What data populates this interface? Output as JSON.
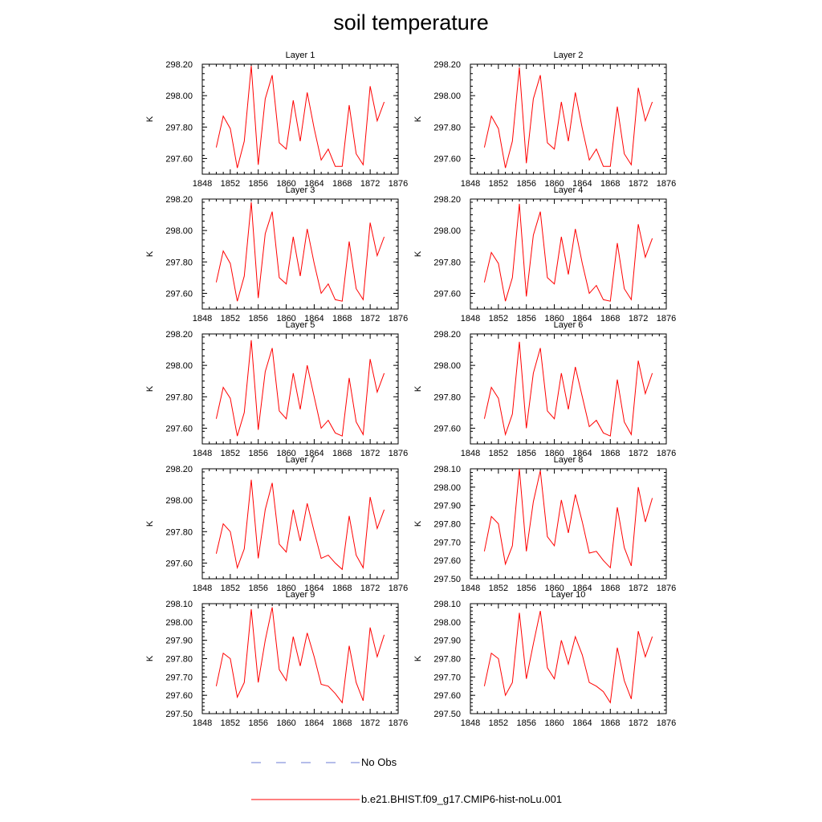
{
  "title": "soil temperature",
  "colors": {
    "model": "#ff0000",
    "obs": "#6b7bd6",
    "axis": "#000000"
  },
  "legend": {
    "obs_label": "No Obs",
    "model_label": "b.e21.BHIST.f09_g17.CMIP6-hist-noLu.001"
  },
  "chart_data": [
    {
      "type": "line",
      "title": "Layer 1",
      "ylabel": "K",
      "xlim": [
        1848,
        1876
      ],
      "ylim": [
        297.5,
        298.2
      ],
      "xticks": [
        "1848",
        "1852",
        "1856",
        "1860",
        "1864",
        "1868",
        "1872",
        "1876"
      ],
      "yticks": [
        "297.60",
        "297.80",
        "298.00",
        "298.20"
      ],
      "x": [
        1850,
        1851,
        1852,
        1853,
        1854,
        1855,
        1856,
        1857,
        1858,
        1859,
        1860,
        1861,
        1862,
        1863,
        1864,
        1865,
        1866,
        1867,
        1868,
        1869,
        1870,
        1871,
        1872,
        1873,
        1874
      ],
      "series": [
        {
          "name": "b.e21.BHIST.f09_g17.CMIP6-hist-noLu.001",
          "values": [
            297.67,
            297.87,
            297.79,
            297.54,
            297.71,
            298.19,
            297.56,
            297.98,
            298.13,
            297.7,
            297.66,
            297.97,
            297.71,
            298.02,
            297.79,
            297.59,
            297.66,
            297.55,
            297.55,
            297.94,
            297.63,
            297.56,
            298.06,
            297.84,
            297.96
          ]
        }
      ]
    },
    {
      "type": "line",
      "title": "Layer 2",
      "ylabel": "K",
      "xlim": [
        1848,
        1876
      ],
      "ylim": [
        297.5,
        298.2
      ],
      "xticks": [
        "1848",
        "1852",
        "1856",
        "1860",
        "1864",
        "1868",
        "1872",
        "1876"
      ],
      "yticks": [
        "297.60",
        "297.80",
        "298.00",
        "298.20"
      ],
      "x": [
        1850,
        1851,
        1852,
        1853,
        1854,
        1855,
        1856,
        1857,
        1858,
        1859,
        1860,
        1861,
        1862,
        1863,
        1864,
        1865,
        1866,
        1867,
        1868,
        1869,
        1870,
        1871,
        1872,
        1873,
        1874
      ],
      "series": [
        {
          "name": "b.e21.BHIST.f09_g17.CMIP6-hist-noLu.001",
          "values": [
            297.67,
            297.87,
            297.79,
            297.54,
            297.71,
            298.18,
            297.57,
            297.98,
            298.13,
            297.7,
            297.66,
            297.96,
            297.71,
            298.02,
            297.79,
            297.59,
            297.66,
            297.55,
            297.55,
            297.93,
            297.63,
            297.56,
            298.05,
            297.84,
            297.96
          ]
        }
      ]
    },
    {
      "type": "line",
      "title": "Layer 3",
      "ylabel": "K",
      "xlim": [
        1848,
        1876
      ],
      "ylim": [
        297.5,
        298.2
      ],
      "xticks": [
        "1848",
        "1852",
        "1856",
        "1860",
        "1864",
        "1868",
        "1872",
        "1876"
      ],
      "yticks": [
        "297.60",
        "297.80",
        "298.00",
        "298.20"
      ],
      "x": [
        1850,
        1851,
        1852,
        1853,
        1854,
        1855,
        1856,
        1857,
        1858,
        1859,
        1860,
        1861,
        1862,
        1863,
        1864,
        1865,
        1866,
        1867,
        1868,
        1869,
        1870,
        1871,
        1872,
        1873,
        1874
      ],
      "series": [
        {
          "name": "b.e21.BHIST.f09_g17.CMIP6-hist-noLu.001",
          "values": [
            297.67,
            297.87,
            297.79,
            297.55,
            297.71,
            298.18,
            297.57,
            297.98,
            298.12,
            297.7,
            297.66,
            297.96,
            297.71,
            298.01,
            297.79,
            297.6,
            297.66,
            297.56,
            297.55,
            297.93,
            297.63,
            297.56,
            298.05,
            297.84,
            297.96
          ]
        }
      ]
    },
    {
      "type": "line",
      "title": "Layer 4",
      "ylabel": "K",
      "xlim": [
        1848,
        1876
      ],
      "ylim": [
        297.5,
        298.2
      ],
      "xticks": [
        "1848",
        "1852",
        "1856",
        "1860",
        "1864",
        "1868",
        "1872",
        "1876"
      ],
      "yticks": [
        "297.60",
        "297.80",
        "298.00",
        "298.20"
      ],
      "x": [
        1850,
        1851,
        1852,
        1853,
        1854,
        1855,
        1856,
        1857,
        1858,
        1859,
        1860,
        1861,
        1862,
        1863,
        1864,
        1865,
        1866,
        1867,
        1868,
        1869,
        1870,
        1871,
        1872,
        1873,
        1874
      ],
      "series": [
        {
          "name": "b.e21.BHIST.f09_g17.CMIP6-hist-noLu.001",
          "values": [
            297.67,
            297.86,
            297.79,
            297.55,
            297.7,
            298.17,
            297.58,
            297.97,
            298.12,
            297.7,
            297.66,
            297.96,
            297.72,
            298.01,
            297.79,
            297.6,
            297.65,
            297.56,
            297.55,
            297.92,
            297.63,
            297.56,
            298.04,
            297.83,
            297.95
          ]
        }
      ]
    },
    {
      "type": "line",
      "title": "Layer 5",
      "ylabel": "K",
      "xlim": [
        1848,
        1876
      ],
      "ylim": [
        297.5,
        298.2
      ],
      "xticks": [
        "1848",
        "1852",
        "1856",
        "1860",
        "1864",
        "1868",
        "1872",
        "1876"
      ],
      "yticks": [
        "297.60",
        "297.80",
        "298.00",
        "298.20"
      ],
      "x": [
        1850,
        1851,
        1852,
        1853,
        1854,
        1855,
        1856,
        1857,
        1858,
        1859,
        1860,
        1861,
        1862,
        1863,
        1864,
        1865,
        1866,
        1867,
        1868,
        1869,
        1870,
        1871,
        1872,
        1873,
        1874
      ],
      "series": [
        {
          "name": "b.e21.BHIST.f09_g17.CMIP6-hist-noLu.001",
          "values": [
            297.66,
            297.86,
            297.79,
            297.55,
            297.7,
            298.16,
            297.59,
            297.96,
            298.11,
            297.71,
            297.66,
            297.95,
            297.72,
            298.0,
            297.8,
            297.6,
            297.65,
            297.57,
            297.55,
            297.92,
            297.64,
            297.56,
            298.04,
            297.83,
            297.95
          ]
        }
      ]
    },
    {
      "type": "line",
      "title": "Layer 6",
      "ylabel": "K",
      "xlim": [
        1848,
        1876
      ],
      "ylim": [
        297.5,
        298.2
      ],
      "xticks": [
        "1848",
        "1852",
        "1856",
        "1860",
        "1864",
        "1868",
        "1872",
        "1876"
      ],
      "yticks": [
        "297.60",
        "297.80",
        "298.00",
        "298.20"
      ],
      "x": [
        1850,
        1851,
        1852,
        1853,
        1854,
        1855,
        1856,
        1857,
        1858,
        1859,
        1860,
        1861,
        1862,
        1863,
        1864,
        1865,
        1866,
        1867,
        1868,
        1869,
        1870,
        1871,
        1872,
        1873,
        1874
      ],
      "series": [
        {
          "name": "b.e21.BHIST.f09_g17.CMIP6-hist-noLu.001",
          "values": [
            297.66,
            297.86,
            297.79,
            297.56,
            297.69,
            298.15,
            297.6,
            297.95,
            298.11,
            297.71,
            297.66,
            297.95,
            297.72,
            297.99,
            297.8,
            297.61,
            297.65,
            297.57,
            297.55,
            297.91,
            297.64,
            297.56,
            298.03,
            297.82,
            297.95
          ]
        }
      ]
    },
    {
      "type": "line",
      "title": "Layer 7",
      "ylabel": "K",
      "xlim": [
        1848,
        1876
      ],
      "ylim": [
        297.5,
        298.2
      ],
      "xticks": [
        "1848",
        "1852",
        "1856",
        "1860",
        "1864",
        "1868",
        "1872",
        "1876"
      ],
      "yticks": [
        "297.60",
        "297.80",
        "298.00",
        "298.20"
      ],
      "x": [
        1850,
        1851,
        1852,
        1853,
        1854,
        1855,
        1856,
        1857,
        1858,
        1859,
        1860,
        1861,
        1862,
        1863,
        1864,
        1865,
        1866,
        1867,
        1868,
        1869,
        1870,
        1871,
        1872,
        1873,
        1874
      ],
      "series": [
        {
          "name": "b.e21.BHIST.f09_g17.CMIP6-hist-noLu.001",
          "values": [
            297.66,
            297.85,
            297.8,
            297.57,
            297.69,
            298.13,
            297.63,
            297.94,
            298.11,
            297.72,
            297.67,
            297.94,
            297.74,
            297.98,
            297.8,
            297.63,
            297.65,
            297.6,
            297.56,
            297.9,
            297.65,
            297.57,
            298.02,
            297.82,
            297.94
          ]
        }
      ]
    },
    {
      "type": "line",
      "title": "Layer 8",
      "ylabel": "K",
      "xlim": [
        1848,
        1876
      ],
      "ylim": [
        297.5,
        298.1
      ],
      "xticks": [
        "1848",
        "1852",
        "1856",
        "1860",
        "1864",
        "1868",
        "1872",
        "1876"
      ],
      "yticks": [
        "297.50",
        "297.60",
        "297.70",
        "297.80",
        "297.90",
        "298.00",
        "298.10"
      ],
      "x": [
        1850,
        1851,
        1852,
        1853,
        1854,
        1855,
        1856,
        1857,
        1858,
        1859,
        1860,
        1861,
        1862,
        1863,
        1864,
        1865,
        1866,
        1867,
        1868,
        1869,
        1870,
        1871,
        1872,
        1873,
        1874
      ],
      "series": [
        {
          "name": "b.e21.BHIST.f09_g17.CMIP6-hist-noLu.001",
          "values": [
            297.65,
            297.84,
            297.8,
            297.58,
            297.68,
            298.1,
            297.65,
            297.92,
            298.09,
            297.73,
            297.68,
            297.93,
            297.75,
            297.96,
            297.81,
            297.64,
            297.65,
            297.6,
            297.56,
            297.89,
            297.67,
            297.57,
            298.0,
            297.81,
            297.94
          ]
        }
      ]
    },
    {
      "type": "line",
      "title": "Layer 9",
      "ylabel": "K",
      "xlim": [
        1848,
        1876
      ],
      "ylim": [
        297.5,
        298.1
      ],
      "xticks": [
        "1848",
        "1852",
        "1856",
        "1860",
        "1864",
        "1868",
        "1872",
        "1876"
      ],
      "yticks": [
        "297.50",
        "297.60",
        "297.70",
        "297.80",
        "297.90",
        "298.00",
        "298.10"
      ],
      "x": [
        1850,
        1851,
        1852,
        1853,
        1854,
        1855,
        1856,
        1857,
        1858,
        1859,
        1860,
        1861,
        1862,
        1863,
        1864,
        1865,
        1866,
        1867,
        1868,
        1869,
        1870,
        1871,
        1872,
        1873,
        1874
      ],
      "series": [
        {
          "name": "b.e21.BHIST.f09_g17.CMIP6-hist-noLu.001",
          "values": [
            297.65,
            297.83,
            297.8,
            297.59,
            297.67,
            298.07,
            297.67,
            297.9,
            298.08,
            297.74,
            297.68,
            297.92,
            297.76,
            297.94,
            297.81,
            297.66,
            297.65,
            297.61,
            297.56,
            297.87,
            297.67,
            297.57,
            297.97,
            297.81,
            297.93
          ]
        }
      ]
    },
    {
      "type": "line",
      "title": "Layer 10",
      "ylabel": "K",
      "xlim": [
        1848,
        1876
      ],
      "ylim": [
        297.5,
        298.1
      ],
      "xticks": [
        "1848",
        "1852",
        "1856",
        "1860",
        "1864",
        "1868",
        "1872",
        "1876"
      ],
      "yticks": [
        "297.50",
        "297.60",
        "297.70",
        "297.80",
        "297.90",
        "298.00",
        "298.10"
      ],
      "x": [
        1850,
        1851,
        1852,
        1853,
        1854,
        1855,
        1856,
        1857,
        1858,
        1859,
        1860,
        1861,
        1862,
        1863,
        1864,
        1865,
        1866,
        1867,
        1868,
        1869,
        1870,
        1871,
        1872,
        1873,
        1874
      ],
      "series": [
        {
          "name": "b.e21.BHIST.f09_g17.CMIP6-hist-noLu.001",
          "values": [
            297.65,
            297.83,
            297.8,
            297.6,
            297.67,
            298.05,
            297.69,
            297.88,
            298.06,
            297.75,
            297.69,
            297.9,
            297.77,
            297.92,
            297.82,
            297.67,
            297.65,
            297.62,
            297.56,
            297.86,
            297.68,
            297.58,
            297.95,
            297.81,
            297.92
          ]
        }
      ]
    }
  ]
}
